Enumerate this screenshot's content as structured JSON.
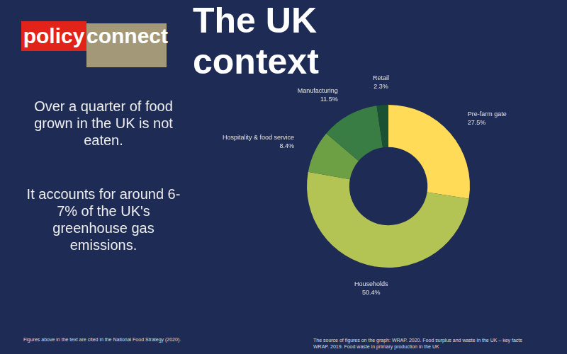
{
  "logo": [
    "policy",
    "connect"
  ],
  "title": "The UK context",
  "text": [
    "Over a quarter of food grown in the UK is not eaten.",
    "It accounts for around 6-7% of the UK's greenhouse gas emissions."
  ],
  "notes": {
    "left": "Figures  above in the text are cited in the National Food Strategy (2020).",
    "right": [
      "The source of figures on the graph: WRAP. 2020. Food surplus and waste in the UK – key facts",
      "WRAP. 2019. Food waste in primary production in the UK"
    ]
  },
  "chart_data": {
    "type": "doughnut",
    "categories": [
      "Pre-farm gate",
      "Households",
      "Hospitality & food service",
      "Manufacturing",
      "Retail"
    ],
    "values": [
      27.5,
      50.4,
      8.4,
      11.5,
      2.3
    ],
    "value_labels": [
      "27.5%",
      "50.4%",
      "8.4%",
      "11.5%",
      "2.3%"
    ],
    "colors": [
      "#ffdb58",
      "#b4c454",
      "#6d9f45",
      "#3a7d44",
      "#1a5132"
    ],
    "data_labels": true,
    "legend": false
  }
}
